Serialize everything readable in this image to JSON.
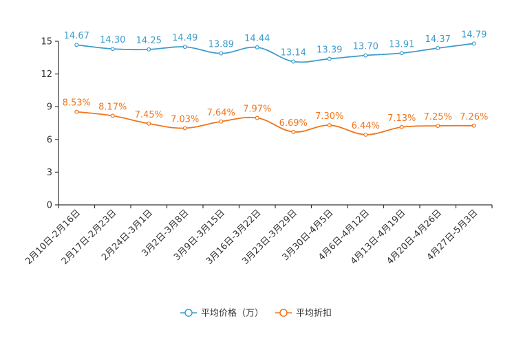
{
  "chart_data": {
    "type": "line",
    "title": "",
    "xlabel": "",
    "ylabel": "",
    "ylim": [
      0,
      15
    ],
    "yticks": [
      0,
      3,
      6,
      9,
      12,
      15
    ],
    "grid": false,
    "legend_position": "bottom-center",
    "categories": [
      "2月10日-2月16日",
      "2月17日-2月23日",
      "2月24日-3月1日",
      "3月2日-3月8日",
      "3月9日-3月15日",
      "3月16日-3月22日",
      "3月23日-3月29日",
      "3月30日-4月5日",
      "4月6日-4月12日",
      "4月13日-4月19日",
      "4月20日-4月26日",
      "4月27日-5月3日"
    ],
    "series": [
      {
        "name": "平均价格（万）",
        "color": "#3d9ccc",
        "values": [
          14.67,
          14.3,
          14.25,
          14.49,
          13.89,
          14.44,
          13.14,
          13.39,
          13.7,
          13.91,
          14.37,
          14.79
        ],
        "labels": [
          "14.67",
          "14.30",
          "14.25",
          "14.49",
          "13.89",
          "14.44",
          "13.14",
          "13.39",
          "13.70",
          "13.91",
          "14.37",
          "14.79"
        ]
      },
      {
        "name": "平均折扣",
        "color": "#f27419",
        "values": [
          8.53,
          8.17,
          7.45,
          7.03,
          7.64,
          7.97,
          6.69,
          7.3,
          6.44,
          7.13,
          7.25,
          7.26
        ],
        "labels": [
          "8.53%",
          "8.17%",
          "7.45%",
          "7.03%",
          "7.64%",
          "7.97%",
          "6.69%",
          "7.30%",
          "6.44%",
          "7.13%",
          "7.25%",
          "7.26%"
        ]
      }
    ]
  }
}
